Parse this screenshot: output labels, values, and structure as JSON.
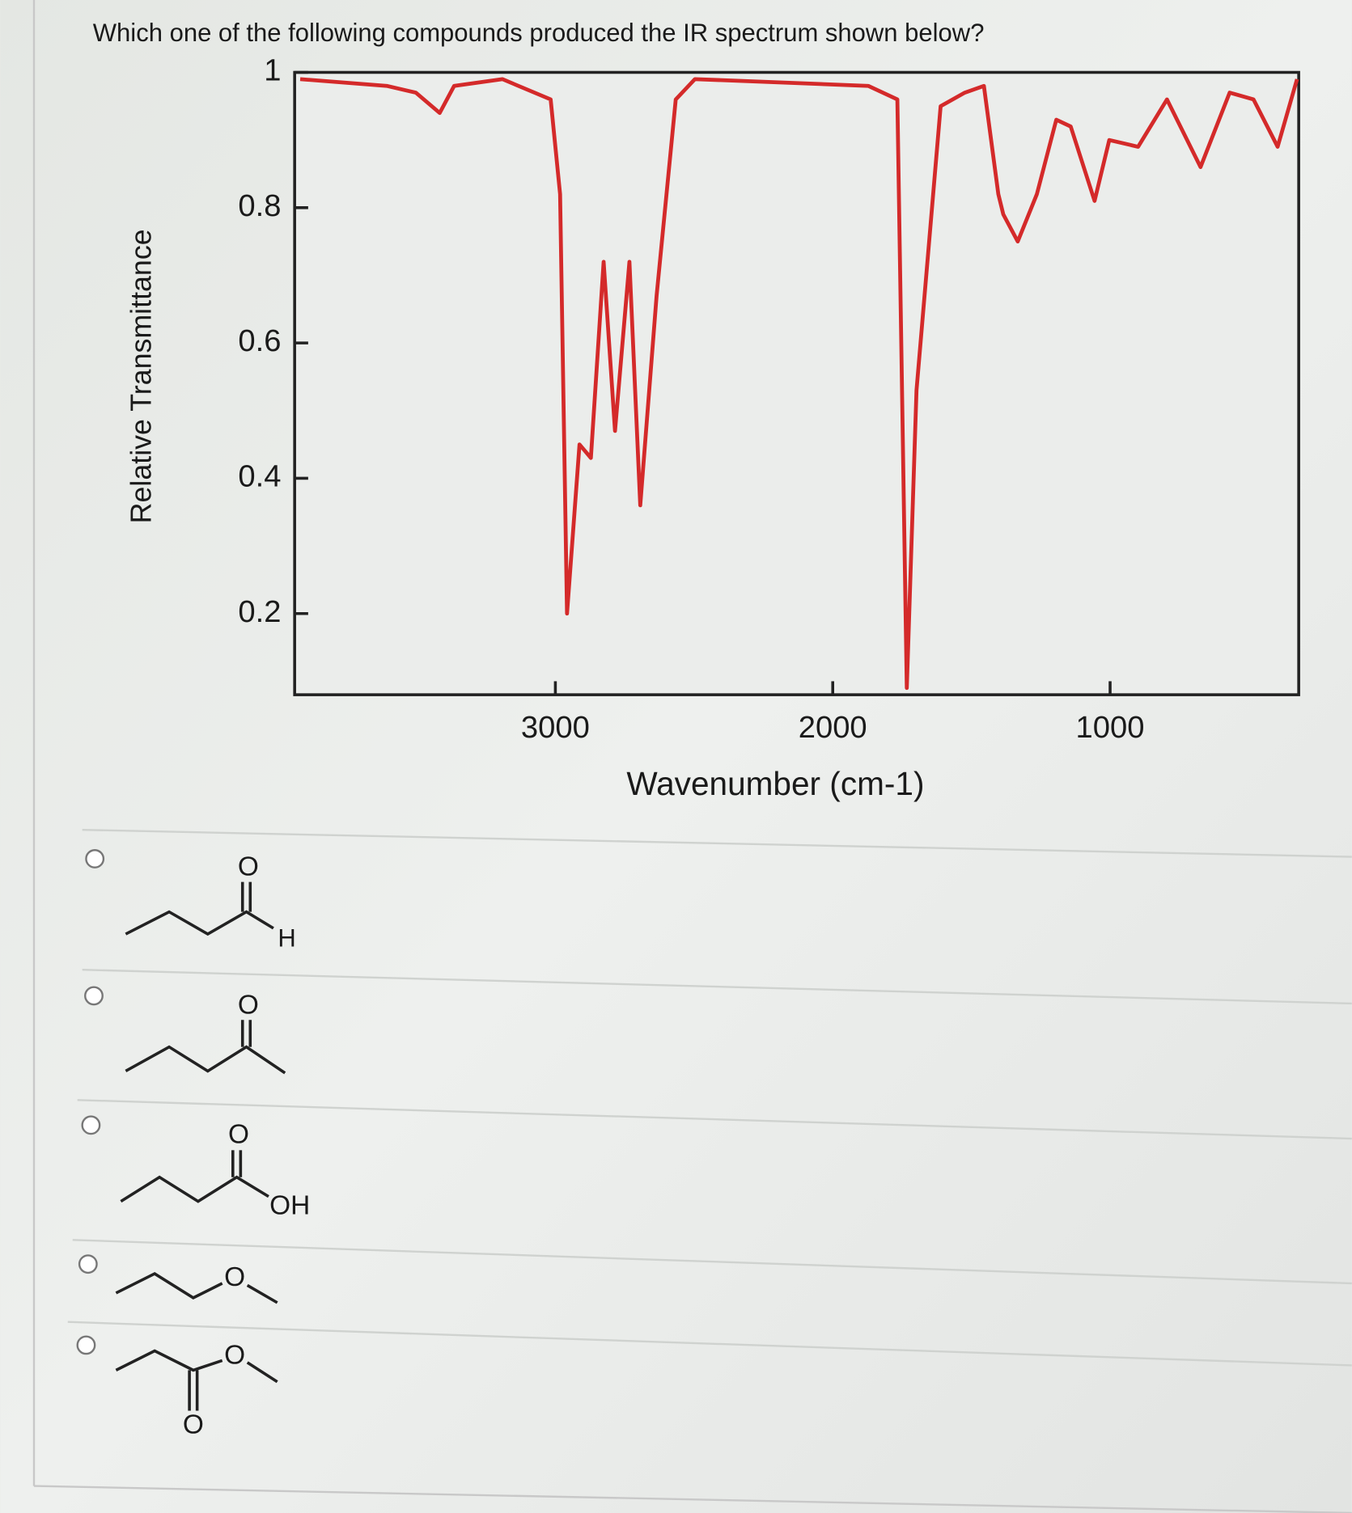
{
  "question": "Which one of the following compounds produced the IR spectrum shown below?",
  "chart_data": {
    "type": "line",
    "x_label": "Wavenumber (cm-1)",
    "y_label": "Relative Transmittance",
    "xlim": [
      3940,
      320
    ],
    "ylim": [
      0.08,
      1
    ],
    "xticks": [
      3000,
      2000,
      1000
    ],
    "yticks": [
      0.2,
      0.4,
      0.6,
      0.8,
      1
    ],
    "x": [
      3920,
      3608,
      3503,
      3417,
      3365,
      3191,
      3017,
      2983,
      2958,
      2913,
      2872,
      2826,
      2785,
      2733,
      2694,
      2635,
      2566,
      2497,
      1872,
      1767,
      1733,
      1698,
      1611,
      1524,
      1455,
      1403,
      1385,
      1333,
      1264,
      1194,
      1142,
      1056,
      1003,
      899,
      795,
      674,
      569,
      483,
      396,
      326
    ],
    "series": [
      {
        "color": "#d42a2a",
        "values": [
          0.99,
          0.98,
          0.97,
          0.94,
          0.98,
          0.99,
          0.96,
          0.82,
          0.2,
          0.45,
          0.43,
          0.72,
          0.47,
          0.72,
          0.36,
          0.67,
          0.96,
          0.99,
          0.98,
          0.96,
          0.09,
          0.53,
          0.95,
          0.97,
          0.98,
          0.82,
          0.79,
          0.75,
          0.82,
          0.93,
          0.92,
          0.81,
          0.9,
          0.89,
          0.96,
          0.86,
          0.97,
          0.96,
          0.89,
          0.99
        ]
      }
    ]
  },
  "options": [
    {
      "atoms": [
        "O",
        "H"
      ]
    },
    {
      "atoms": [
        "O"
      ]
    },
    {
      "atoms": [
        "O",
        "OH"
      ]
    },
    {
      "atoms": [
        "O"
      ]
    },
    {
      "atoms": [
        "O",
        "O"
      ]
    }
  ]
}
